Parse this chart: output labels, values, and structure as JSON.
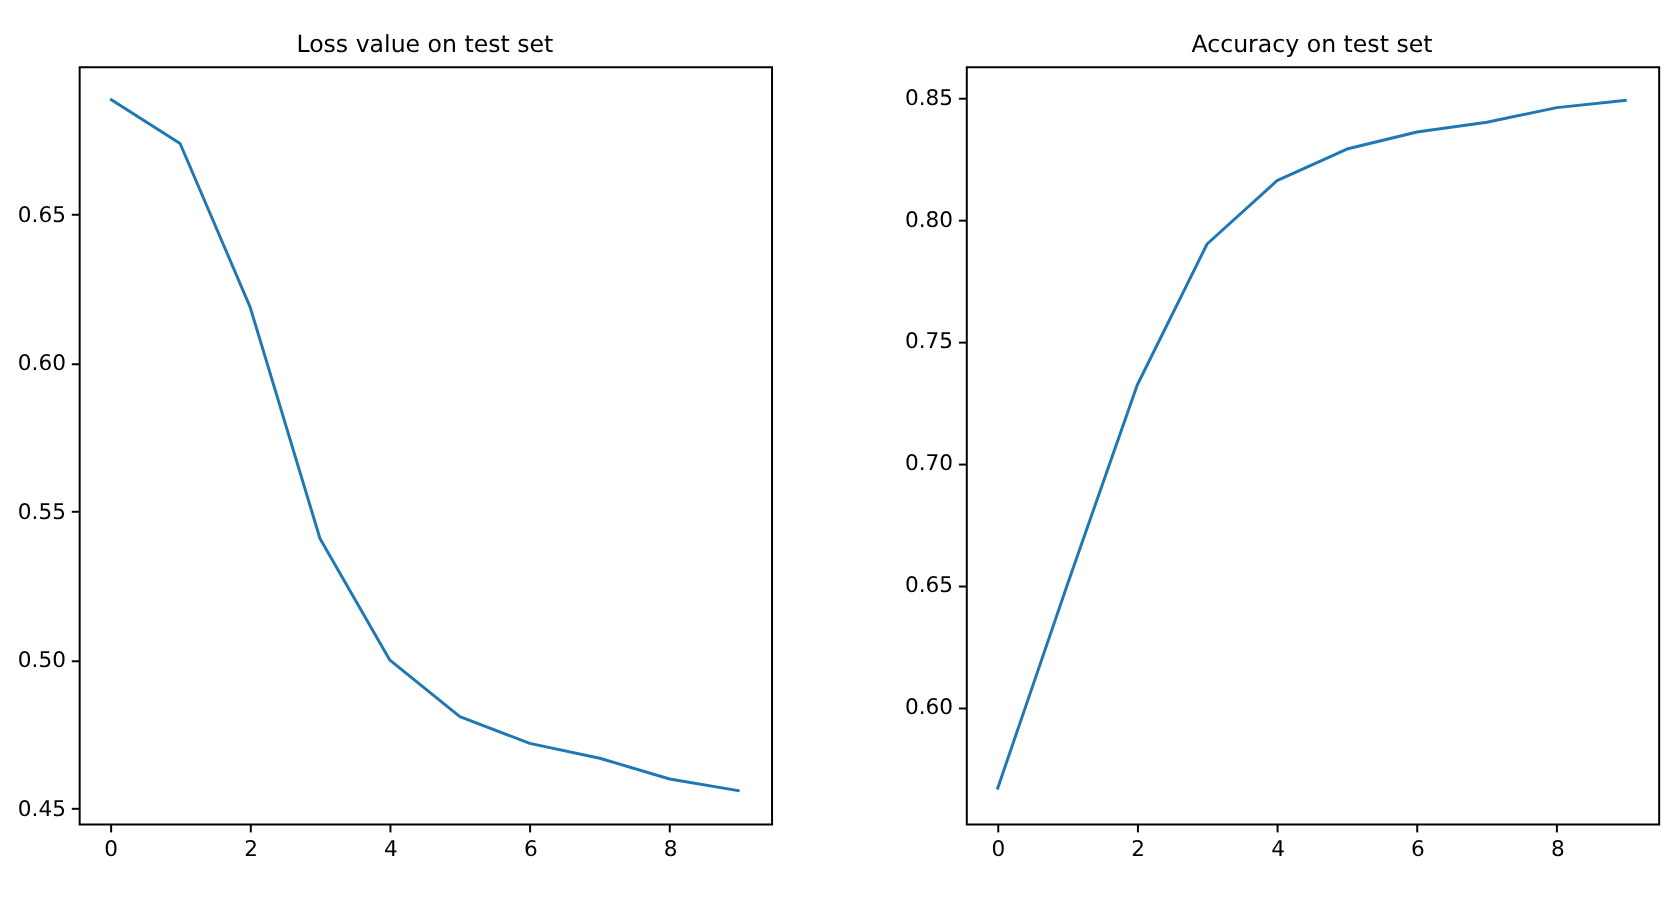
{
  "chart_data": [
    {
      "type": "line",
      "title": "Loss value on test set",
      "x": [
        0,
        1,
        2,
        3,
        4,
        5,
        6,
        7,
        8,
        9
      ],
      "series": [
        {
          "color": "#1f77b4",
          "values": [
            0.689,
            0.674,
            0.619,
            0.541,
            0.5,
            0.481,
            0.472,
            0.467,
            0.46,
            0.456
          ]
        }
      ],
      "xlim": [
        -0.45,
        9.45
      ],
      "xticks": [
        0,
        2,
        4,
        6,
        8
      ],
      "ylim": [
        0.445,
        0.7
      ],
      "yticks": [
        0.45,
        {
          "value": 0.5,
          "label": "0.50"
        },
        0.55,
        {
          "value": 0.6,
          "label": "0.60"
        },
        0.65
      ],
      "grid": false
    },
    {
      "type": "line",
      "title": "Accuracy on test set",
      "x": [
        0,
        1,
        2,
        3,
        4,
        5,
        6,
        7,
        8,
        9
      ],
      "series": [
        {
          "color": "#1f77b4",
          "values": [
            0.566,
            0.65,
            0.732,
            0.79,
            0.816,
            0.829,
            0.836,
            0.84,
            0.846,
            0.849
          ]
        }
      ],
      "xlim": [
        -0.45,
        9.45
      ],
      "xticks": [
        0,
        2,
        4,
        6,
        8
      ],
      "ylim": [
        0.552,
        0.863
      ],
      "yticks": [
        {
          "value": 0.6,
          "label": "0.60"
        },
        0.65,
        {
          "value": 0.7,
          "label": "0.70"
        },
        0.75,
        {
          "value": 0.8,
          "label": "0.80"
        },
        0.85
      ],
      "grid": false
    }
  ]
}
